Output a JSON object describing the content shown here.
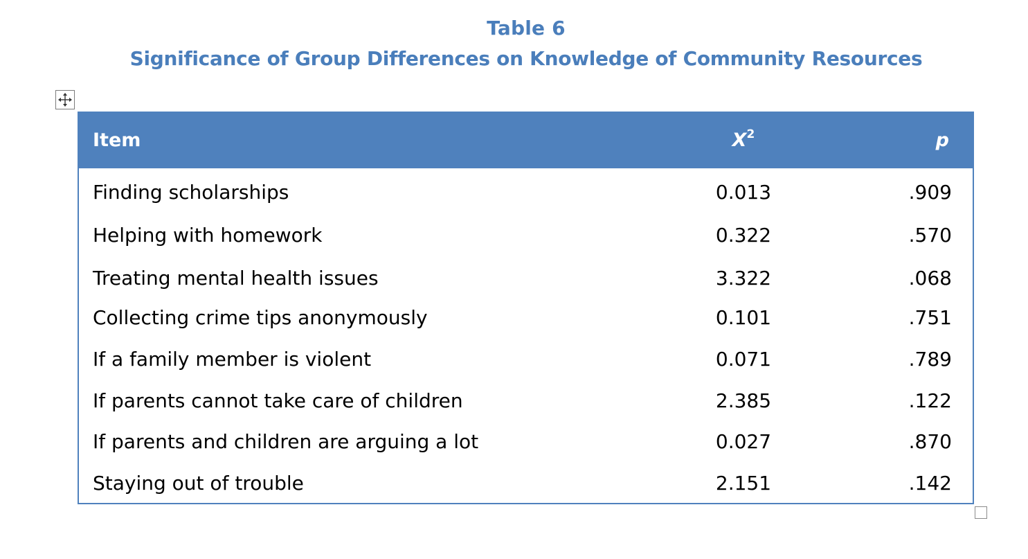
{
  "caption": {
    "number": "Table 6",
    "title": "Significance of Group Differences on Knowledge of Community Resources"
  },
  "colors": {
    "accent": "#4f81bd",
    "caption": "#4a7ebb"
  },
  "table": {
    "headers": {
      "item": "Item",
      "chi_symbol": "X",
      "chi_superscript": "2",
      "p": "p"
    },
    "rows": [
      {
        "item": "Finding scholarships",
        "x2": "0.013",
        "p": ".909"
      },
      {
        "item": "Helping with homework",
        "x2": "0.322",
        "p": ".570"
      },
      {
        "item": "Treating mental health issues",
        "x2": "3.322",
        "p": ".068"
      },
      {
        "item": "Collecting crime tips anonymously",
        "x2": "0.101",
        "p": ".751"
      },
      {
        "item": "If a family member is violent",
        "x2": "0.071",
        "p": ".789"
      },
      {
        "item": "If parents cannot take care of children",
        "x2": "2.385",
        "p": ".122"
      },
      {
        "item": "If parents and children are arguing a lot",
        "x2": "0.027",
        "p": ".870"
      },
      {
        "item": "Staying out of trouble",
        "x2": "2.151",
        "p": ".142"
      }
    ]
  },
  "icons": {
    "move_handle": "move-arrows-icon",
    "resize_handle": "resize-square-icon"
  }
}
